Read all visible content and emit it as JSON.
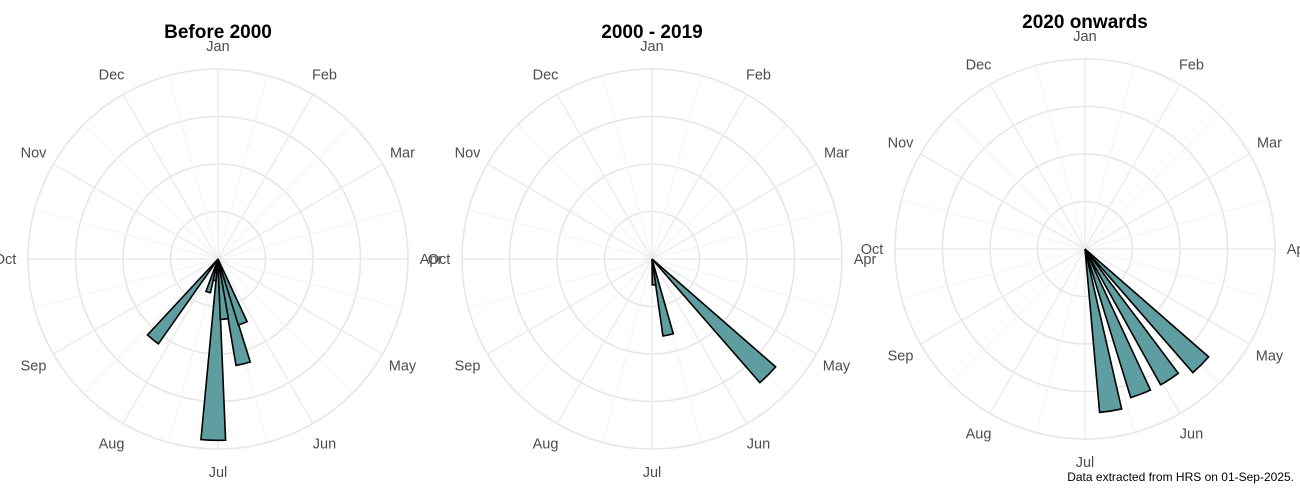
{
  "chart_data": [
    {
      "type": "polar-bar",
      "title": "Before 2000",
      "categories": [
        "Jan",
        "Feb",
        "Mar",
        "Apr",
        "May",
        "Jun",
        "Jul",
        "Aug",
        "Sep",
        "Oct",
        "Nov",
        "Dec"
      ],
      "bars": [
        {
          "month_position": 5.3,
          "value": 1.6
        },
        {
          "month_position": 5.55,
          "value": 2.5
        },
        {
          "month_position": 5.8,
          "value": 1.4
        },
        {
          "month_position": 6.05,
          "value": 4.2
        },
        {
          "month_position": 6.3,
          "value": 0.5
        },
        {
          "month_position": 6.55,
          "value": 0.8
        },
        {
          "month_position": 7.3,
          "value": 2.4
        }
      ]
    },
    {
      "type": "polar-bar",
      "title": "2000 - 2019",
      "categories": [
        "Jan",
        "Feb",
        "Mar",
        "Apr",
        "May",
        "Jun",
        "Jul",
        "Aug",
        "Sep",
        "Oct",
        "Nov",
        "Dec"
      ],
      "bars": [
        {
          "month_position": 4.5,
          "value": 3.8
        },
        {
          "month_position": 5.6,
          "value": 1.8
        },
        {
          "month_position": 5.85,
          "value": 0.6
        }
      ]
    },
    {
      "type": "polar-bar",
      "title": "2020 onwards",
      "categories": [
        "Jan",
        "Feb",
        "Mar",
        "Apr",
        "May",
        "Jun",
        "Jul",
        "Aug",
        "Sep",
        "Oct",
        "Nov",
        "Dec"
      ],
      "bars": [
        {
          "month_position": 4.5,
          "value": 3.8
        },
        {
          "month_position": 4.9,
          "value": 3.6
        },
        {
          "month_position": 5.3,
          "value": 3.6
        },
        {
          "month_position": 5.7,
          "value": 3.8
        }
      ]
    }
  ],
  "caption": "Data extracted from HRS on 01-Sep-2025."
}
